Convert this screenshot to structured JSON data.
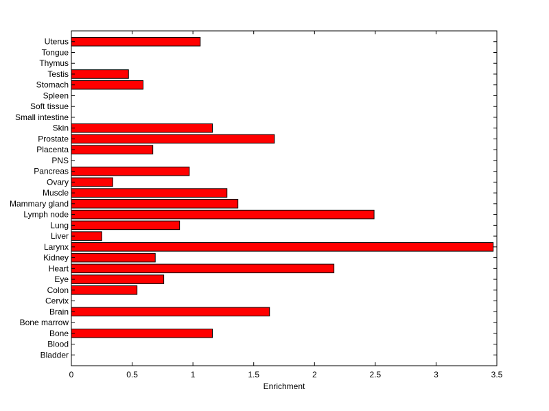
{
  "chart_data": {
    "type": "bar",
    "orientation": "horizontal",
    "categories": [
      "Bladder",
      "Blood",
      "Bone",
      "Bone marrow",
      "Brain",
      "Cervix",
      "Colon",
      "Eye",
      "Heart",
      "Kidney",
      "Larynx",
      "Liver",
      "Lung",
      "Lymph node",
      "Mammary gland",
      "Muscle",
      "Ovary",
      "Pancreas",
      "PNS",
      "Placenta",
      "Prostate",
      "Skin",
      "Small intestine",
      "Soft tissue",
      "Spleen",
      "Stomach",
      "Testis",
      "Thymus",
      "Tongue",
      "Uterus"
    ],
    "values": [
      0,
      0,
      1.16,
      0,
      1.63,
      0,
      0.54,
      0.76,
      2.16,
      0.69,
      3.47,
      0.25,
      0.89,
      2.49,
      1.37,
      1.28,
      0.34,
      0.97,
      0,
      0.67,
      1.67,
      1.16,
      0,
      0,
      0,
      0.59,
      0.47,
      0,
      0,
      1.06
    ],
    "xlabel": "Enrichment",
    "ylabel": "",
    "title": "",
    "xlim": [
      0,
      3.5
    ],
    "xticks": [
      "0",
      "0.5",
      "1",
      "1.5",
      "2",
      "2.5",
      "3",
      "3.5"
    ],
    "grid": false,
    "bar_color": "#ff0000",
    "bar_edge_color": "#000000"
  }
}
